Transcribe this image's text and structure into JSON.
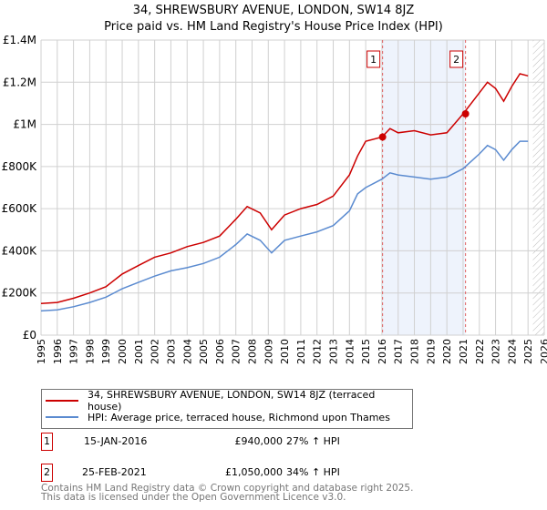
{
  "chart_data": {
    "type": "line",
    "title": "34, SHREWSBURY AVENUE, LONDON, SW14 8JZ",
    "subtitle": "Price paid vs. HM Land Registry's House Price Index (HPI)",
    "xlim": [
      1995,
      2026
    ],
    "ylim": [
      0,
      1400000
    ],
    "x_ticks": [
      "1995",
      "1996",
      "1997",
      "1998",
      "1999",
      "2000",
      "2001",
      "2002",
      "2003",
      "2004",
      "2005",
      "2006",
      "2007",
      "2008",
      "2009",
      "2010",
      "2011",
      "2012",
      "2013",
      "2014",
      "2015",
      "2016",
      "2017",
      "2018",
      "2019",
      "2020",
      "2021",
      "2022",
      "2023",
      "2024",
      "2025",
      "2026"
    ],
    "y_ticks": [
      {
        "v": 0,
        "label": "£0"
      },
      {
        "v": 200000,
        "label": "£200K"
      },
      {
        "v": 400000,
        "label": "£400K"
      },
      {
        "v": 600000,
        "label": "£600K"
      },
      {
        "v": 800000,
        "label": "£800K"
      },
      {
        "v": 1000000,
        "label": "£1M"
      },
      {
        "v": 1200000,
        "label": "£1.2M"
      },
      {
        "v": 1400000,
        "label": "£1.4M"
      }
    ],
    "grid": true,
    "shaded_range": [
      2016.04,
      2021.15
    ],
    "future_hatch_from": 2025.3,
    "series": [
      {
        "name": "34, SHREWSBURY AVENUE, LONDON, SW14 8JZ (terraced house)",
        "color": "#cc0000",
        "x": [
          1995,
          1996,
          1997,
          1998,
          1999,
          2000,
          2001,
          2002,
          2003,
          2004,
          2005,
          2006,
          2007,
          2007.7,
          2008.5,
          2009.2,
          2010,
          2011,
          2012,
          2013,
          2014,
          2014.5,
          2015,
          2016,
          2016.5,
          2017,
          2018,
          2019,
          2020,
          2021,
          2022,
          2022.5,
          2023,
          2023.5,
          2024,
          2024.5,
          2025
        ],
        "values": [
          150000,
          155000,
          175000,
          200000,
          230000,
          290000,
          330000,
          370000,
          390000,
          420000,
          440000,
          470000,
          550000,
          610000,
          580000,
          500000,
          570000,
          600000,
          620000,
          660000,
          760000,
          850000,
          920000,
          940000,
          980000,
          960000,
          970000,
          950000,
          960000,
          1050000,
          1150000,
          1200000,
          1170000,
          1110000,
          1180000,
          1240000,
          1230000
        ]
      },
      {
        "name": "HPI: Average price, terraced house, Richmond upon Thames",
        "color": "#5b8bd0",
        "x": [
          1995,
          1996,
          1997,
          1998,
          1999,
          2000,
          2001,
          2002,
          2003,
          2004,
          2005,
          2006,
          2007,
          2007.7,
          2008.5,
          2009.2,
          2010,
          2011,
          2012,
          2013,
          2014,
          2014.5,
          2015,
          2016,
          2016.5,
          2017,
          2018,
          2019,
          2020,
          2021,
          2022,
          2022.5,
          2023,
          2023.5,
          2024,
          2024.5,
          2025
        ],
        "values": [
          115000,
          120000,
          135000,
          155000,
          180000,
          220000,
          250000,
          280000,
          305000,
          320000,
          340000,
          370000,
          430000,
          480000,
          450000,
          390000,
          450000,
          470000,
          490000,
          520000,
          590000,
          670000,
          700000,
          740000,
          770000,
          760000,
          750000,
          740000,
          750000,
          790000,
          860000,
          900000,
          880000,
          830000,
          880000,
          920000,
          920000
        ]
      }
    ],
    "markers": [
      {
        "label": "1",
        "x": 2016.04,
        "value": 940000
      },
      {
        "label": "2",
        "x": 2021.15,
        "value": 1050000
      }
    ]
  },
  "sales": [
    {
      "num": "1",
      "date": "15-JAN-2016",
      "price": "£940,000",
      "hpi": "27% ↑ HPI"
    },
    {
      "num": "2",
      "date": "25-FEB-2021",
      "price": "£1,050,000",
      "hpi": "34% ↑ HPI"
    }
  ],
  "footer": {
    "line1": "Contains HM Land Registry data © Crown copyright and database right 2025.",
    "line2": "This data is licensed under the Open Government Licence v3.0."
  }
}
